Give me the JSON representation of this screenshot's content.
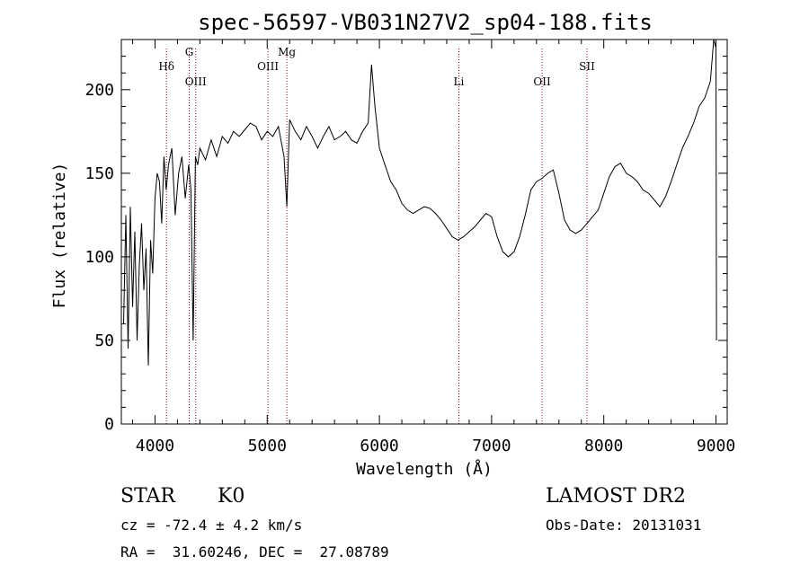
{
  "chart_data": {
    "type": "line",
    "title": "spec-56597-VB031N27V2_sp04-188.fits",
    "xlabel": "Wavelength (Å)",
    "ylabel": "Flux (relative)",
    "xlim": [
      3700,
      9100
    ],
    "ylim": [
      0,
      230
    ],
    "xticks": [
      4000,
      5000,
      6000,
      7000,
      8000,
      9000
    ],
    "yticks": [
      0,
      50,
      100,
      150,
      200
    ],
    "grid": false,
    "line_color": "#000000",
    "marker_color": "#8b0000",
    "lines": [
      {
        "label": "Hδ",
        "x": 4102
      },
      {
        "label": "G",
        "x": 4305
      },
      {
        "label": "OIII",
        "x": 4363
      },
      {
        "label": "OIII",
        "x": 5007
      },
      {
        "label": "Mg",
        "x": 5175
      },
      {
        "label": "Li",
        "x": 6708
      },
      {
        "label": "OII",
        "x": 7450
      },
      {
        "label": "SII",
        "x": 7850
      }
    ],
    "series": [
      {
        "x": [
          3720,
          3740,
          3760,
          3780,
          3800,
          3820,
          3840,
          3860,
          3880,
          3900,
          3920,
          3940,
          3960,
          3980,
          4000,
          4020,
          4040,
          4060,
          4080,
          4100,
          4120,
          4150,
          4180,
          4210,
          4240,
          4270,
          4300,
          4320,
          4340,
          4360,
          4380,
          4400,
          4450,
          4500,
          4550,
          4600,
          4650,
          4700,
          4750,
          4800,
          4850,
          4900,
          4950,
          5000,
          5050,
          5100,
          5150,
          5175,
          5200,
          5250,
          5300,
          5350,
          5400,
          5450,
          5500,
          5550,
          5600,
          5650,
          5700,
          5750,
          5800,
          5850,
          5900,
          5930,
          5960,
          6000,
          6050,
          6100,
          6150,
          6200,
          6250,
          6300,
          6350,
          6400,
          6450,
          6500,
          6550,
          6600,
          6650,
          6700,
          6750,
          6800,
          6850,
          6900,
          6950,
          7000,
          7050,
          7100,
          7150,
          7200,
          7250,
          7300,
          7350,
          7400,
          7450,
          7500,
          7550,
          7600,
          7650,
          7700,
          7750,
          7800,
          7850,
          7900,
          7950,
          8000,
          8050,
          8100,
          8150,
          8200,
          8250,
          8300,
          8350,
          8400,
          8450,
          8500,
          8550,
          8600,
          8650,
          8700,
          8750,
          8800,
          8850,
          8900,
          8950,
          8980,
          9000,
          9005
        ],
        "y": [
          60,
          125,
          45,
          130,
          70,
          115,
          50,
          95,
          120,
          80,
          105,
          35,
          110,
          90,
          135,
          150,
          145,
          120,
          160,
          140,
          155,
          165,
          125,
          150,
          160,
          135,
          155,
          140,
          50,
          160,
          155,
          165,
          158,
          170,
          160,
          172,
          168,
          175,
          172,
          176,
          180,
          178,
          170,
          175,
          172,
          178,
          160,
          130,
          182,
          175,
          170,
          178,
          172,
          165,
          172,
          178,
          170,
          172,
          175,
          170,
          168,
          175,
          180,
          215,
          190,
          165,
          155,
          145,
          140,
          132,
          128,
          126,
          128,
          130,
          129,
          126,
          122,
          117,
          112,
          110,
          112,
          115,
          118,
          122,
          126,
          124,
          112,
          103,
          100,
          103,
          112,
          125,
          140,
          145,
          147,
          150,
          152,
          138,
          122,
          116,
          114,
          116,
          120,
          124,
          128,
          138,
          148,
          154,
          156,
          150,
          148,
          145,
          140,
          138,
          134,
          130,
          136,
          145,
          155,
          165,
          172,
          180,
          190,
          195,
          205,
          230,
          225,
          50
        ]
      }
    ]
  },
  "footer": {
    "object_class": "STAR",
    "subclass": "K0",
    "survey": "LAMOST DR2",
    "cz": "cz = -72.4 ± 4.2 km/s",
    "obs_date": "Obs-Date: 20131031",
    "coords": "RA =  31.60246, DEC =  27.08789"
  }
}
